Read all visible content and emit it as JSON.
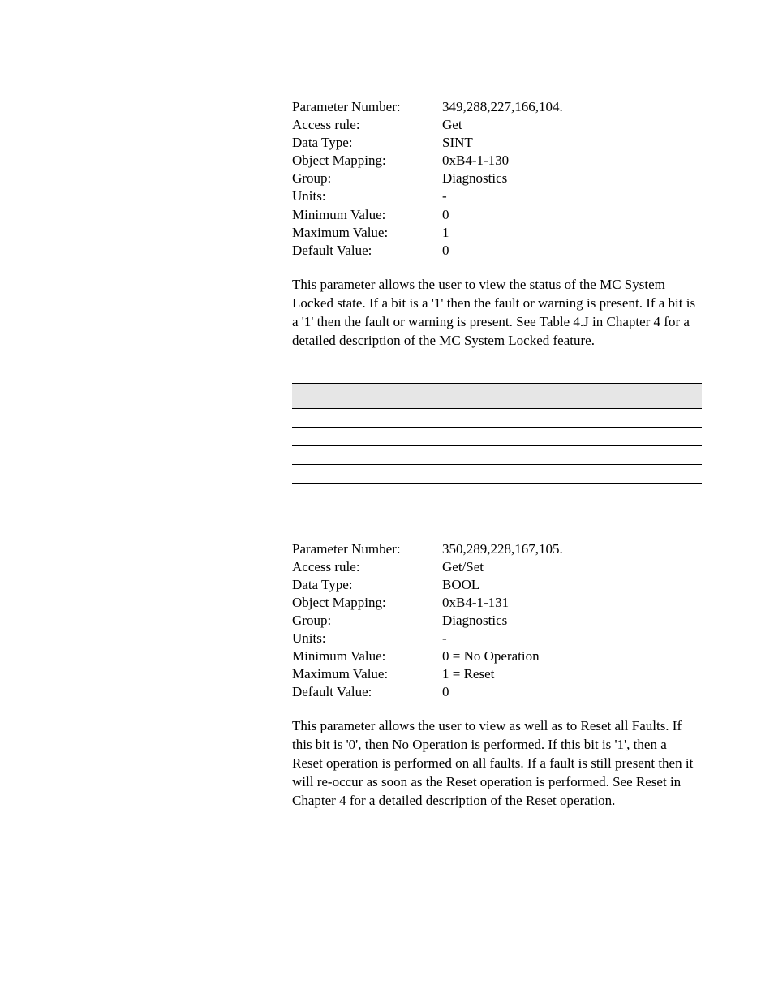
{
  "param1": {
    "rows": [
      {
        "label": "Parameter Number:",
        "value": "349,288,227,166,104."
      },
      {
        "label": "Access rule:",
        "value": "Get"
      },
      {
        "label": "Data Type:",
        "value": "SINT"
      },
      {
        "label": "Object Mapping:",
        "value": "0xB4-1-130"
      },
      {
        "label": "Group:",
        "value": "Diagnostics"
      },
      {
        "label": "Units:",
        "value": "-"
      },
      {
        "label": "Minimum Value:",
        "value": "0"
      },
      {
        "label": "Maximum Value:",
        "value": "1"
      },
      {
        "label": "Default Value:",
        "value": "0"
      }
    ],
    "description": "This parameter allows the user to view the status of the MC System Locked state.  If a bit is a '1' then the fault or warning is present.  If a bit is a '1' then the fault or warning is present.  See Table 4.J in Chapter 4 for a detailed description of the MC System Locked feature."
  },
  "table": {
    "headers": [
      "",
      "",
      ""
    ],
    "rows": [
      [
        "",
        "",
        ""
      ],
      [
        "",
        "",
        ""
      ],
      [
        "",
        "",
        ""
      ],
      [
        "",
        "",
        ""
      ]
    ]
  },
  "param2": {
    "rows": [
      {
        "label": "Parameter Number:",
        "value": "350,289,228,167,105."
      },
      {
        "label": "Access rule:",
        "value": "Get/Set"
      },
      {
        "label": "Data Type:",
        "value": "BOOL"
      },
      {
        "label": "Object Mapping:",
        "value": "0xB4-1-131"
      },
      {
        "label": "Group:",
        "value": "Diagnostics"
      },
      {
        "label": "Units:",
        "value": "-"
      },
      {
        "label": "Minimum Value:",
        "value": "0 = No Operation"
      },
      {
        "label": "Maximum Value:",
        "value": "1 = Reset"
      },
      {
        "label": "Default Value:",
        "value": "0"
      }
    ],
    "description": "This parameter allows the user to view as well as to Reset all Faults.  If this bit is '0', then No Operation is performed.  If this bit is '1', then a Reset operation is performed on all faults.  If a fault is still present then it will re-occur as soon as the Reset operation is performed.  See Reset in Chapter 4 for a detailed description of the Reset operation."
  }
}
